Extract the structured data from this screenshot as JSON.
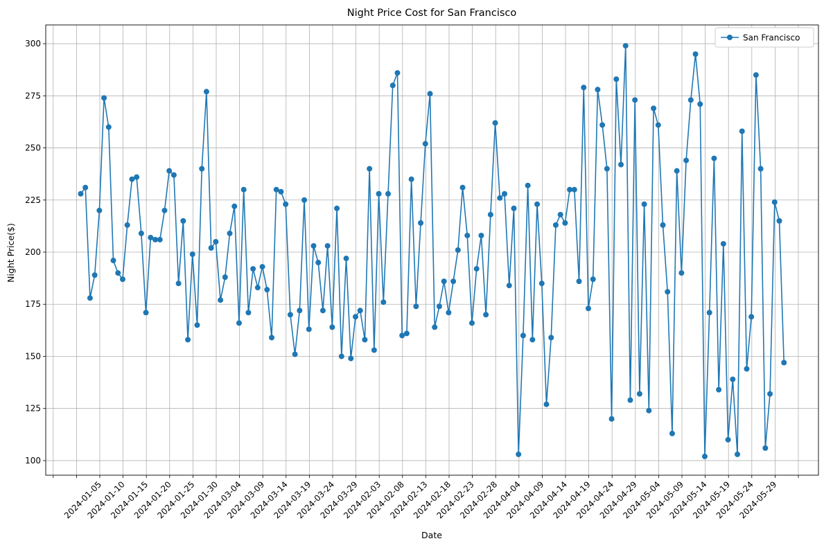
{
  "chart_data": {
    "type": "line",
    "title": "Night Price Cost for San Francisco",
    "xlabel": "Date",
    "ylabel": "Night Price($)",
    "x_tick_labels": [
      "2024-01-05",
      "2024-01-10",
      "2024-01-15",
      "2024-01-20",
      "2024-01-25",
      "2024-01-30",
      "2024-03-04",
      "2024-03-09",
      "2024-03-14",
      "2024-03-19",
      "2024-03-24",
      "2024-03-29",
      "2024-02-03",
      "2024-02-08",
      "2024-02-13",
      "2024-02-18",
      "2024-02-23",
      "2024-02-28",
      "2024-04-04",
      "2024-04-09",
      "2024-04-14",
      "2024-04-19",
      "2024-04-24",
      "2024-04-29",
      "2024-05-04",
      "2024-05-09",
      "2024-05-14",
      "2024-05-19",
      "2024-05-24",
      "2024-05-29"
    ],
    "y_ticks": [
      100,
      125,
      150,
      175,
      200,
      225,
      250,
      275,
      300
    ],
    "ylim": [
      93,
      309
    ],
    "grid": true,
    "legend_position": "top-right",
    "series": [
      {
        "name": "San Francisco",
        "color": "#1f77b4",
        "marker": "circle",
        "values": [
          228,
          231,
          178,
          189,
          220,
          274,
          260,
          196,
          190,
          187,
          213,
          235,
          236,
          209,
          171,
          207,
          206,
          206,
          220,
          239,
          237,
          185,
          215,
          158,
          199,
          165,
          240,
          277,
          202,
          205,
          177,
          188,
          209,
          222,
          166,
          230,
          171,
          192,
          183,
          193,
          182,
          159,
          230,
          229,
          223,
          170,
          151,
          172,
          225,
          163,
          203,
          195,
          172,
          203,
          164,
          221,
          150,
          197,
          149,
          169,
          172,
          158,
          240,
          153,
          228,
          176,
          228,
          280,
          286,
          160,
          161,
          235,
          174,
          214,
          252,
          276,
          164,
          174,
          186,
          171,
          186,
          201,
          231,
          208,
          166,
          192,
          208,
          170,
          218,
          262,
          226,
          228,
          184,
          221,
          103,
          160,
          232,
          158,
          223,
          185,
          127,
          159,
          213,
          218,
          214,
          230,
          230,
          186,
          279,
          173,
          187,
          278,
          261,
          240,
          120,
          283,
          242,
          299,
          129,
          273,
          132,
          223,
          124,
          269,
          261,
          213,
          181,
          113,
          239,
          190,
          244,
          273,
          295,
          271,
          102,
          171,
          245,
          134,
          204,
          110,
          139,
          103,
          258,
          144,
          169,
          285,
          240,
          106,
          132,
          224,
          215,
          147
        ]
      }
    ]
  }
}
